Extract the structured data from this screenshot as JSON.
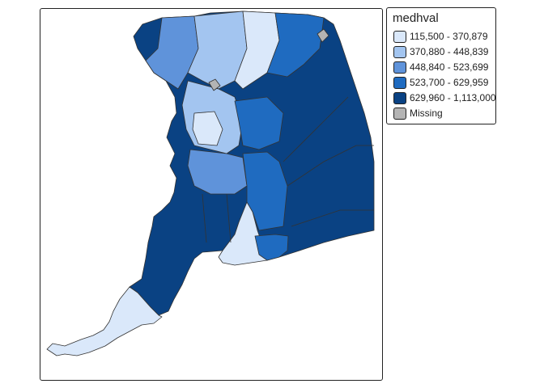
{
  "legend": {
    "title": "medhval",
    "items": [
      {
        "label": "115,500 - 370,879",
        "color": "#DAE8FA"
      },
      {
        "label": "370,880 - 448,839",
        "color": "#A3C5F0"
      },
      {
        "label": "448,840 - 523,699",
        "color": "#5F93DA"
      },
      {
        "label": "523,700 - 629,959",
        "color": "#1F6BC0"
      },
      {
        "label": "629,960 - 1,113,000",
        "color": "#0A4283"
      },
      {
        "label": "Missing",
        "color": "#B4B4B4"
      }
    ]
  },
  "border_color": "#333333"
}
